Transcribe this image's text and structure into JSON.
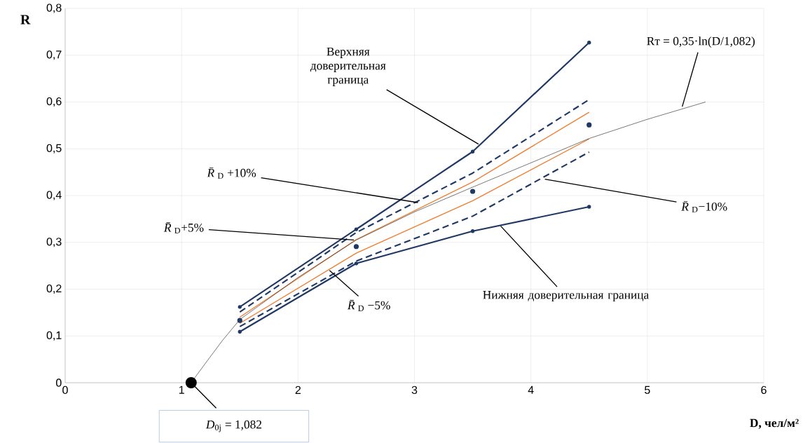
{
  "chart_data": {
    "type": "line",
    "xlabel": "D, чел/м²",
    "ylabel": "R",
    "xlim": [
      0,
      6
    ],
    "ylim": [
      0,
      0.8
    ],
    "xticks": [
      0,
      1,
      2,
      3,
      4,
      5,
      6
    ],
    "yticks": [
      0,
      {
        "value": 0.1,
        "label": "0,1"
      },
      {
        "value": 0.2,
        "label": "0,2"
      },
      {
        "value": 0.3,
        "label": "0,3"
      },
      {
        "value": 0.4,
        "label": "0,4"
      },
      {
        "value": 0.5,
        "label": "0,5"
      },
      {
        "value": 0.6,
        "label": "0,6"
      },
      {
        "value": 0.7,
        "label": "0,7"
      },
      {
        "value": 0.8,
        "label": "0,8"
      }
    ],
    "grid": true,
    "x": [
      1.5,
      2.5,
      3.5,
      4.5
    ],
    "series": [
      {
        "color": "#1f3864",
        "values": [
          0.162,
          0.328,
          0.494,
          0.727
        ],
        "marker": "circle"
      },
      {
        "color": "#1f3864",
        "values": [
          0.151,
          0.321,
          0.448,
          0.605
        ],
        "line_style": "dashed"
      },
      {
        "color": "#ed7d31",
        "values": [
          0.14,
          0.306,
          0.429,
          0.578
        ]
      },
      {
        "type": "scatter",
        "color": "#1f3864",
        "values": [
          0.133,
          0.291,
          0.409,
          0.551
        ],
        "marker": "circle"
      },
      {
        "color": "#ed7d31",
        "values": [
          0.127,
          0.277,
          0.389,
          0.521
        ]
      },
      {
        "color": "#1f3864",
        "values": [
          0.12,
          0.26,
          0.356,
          0.493
        ],
        "line_style": "dashed"
      },
      {
        "color": "#1f3864",
        "values": [
          0.109,
          0.255,
          0.324,
          0.376
        ],
        "marker": "circle"
      },
      {
        "color": "#000000",
        "x": [
          1.082,
          1.2,
          1.35,
          1.5,
          2,
          2.5,
          3,
          3.5,
          4,
          4.5,
          5,
          5.5
        ],
        "values": [
          0,
          0.04,
          0.09,
          0.135,
          0.225,
          0.305,
          0.365,
          0.418,
          0.47,
          0.522,
          0.563,
          0.6
        ]
      },
      {
        "type": "scatter",
        "color": "#000000",
        "x": [
          1.082
        ],
        "values": [
          0
        ],
        "marker": "circle"
      }
    ],
    "annotations": [
      {
        "text": "Верхняя доверительная граница",
        "x": 3.55,
        "y": 0.51
      },
      {
        "text": "Rт = 0,35·ln(D/1,082)",
        "x": 5.3,
        "y": 0.59
      },
      {
        "text": "*R̄*$_{D}$ +10%",
        "x": 3.03,
        "y": 0.385
      },
      {
        "text": "*R̄*$_{D}$+5%",
        "x": 2.48,
        "y": 0.305
      },
      {
        "text": "*R̄*$_{D}$ −5%",
        "x": 2.27,
        "y": 0.24
      },
      {
        "text": "*R̄*$_{D}$−10%",
        "x": 4.12,
        "y": 0.435
      },
      {
        "text": "Нижняя доверительная граница",
        "x": 3.74,
        "y": 0.335
      },
      {
        "text": "*D*$_{0j}$ = 1,082",
        "x": 1.082,
        "y": 0
      }
    ]
  }
}
